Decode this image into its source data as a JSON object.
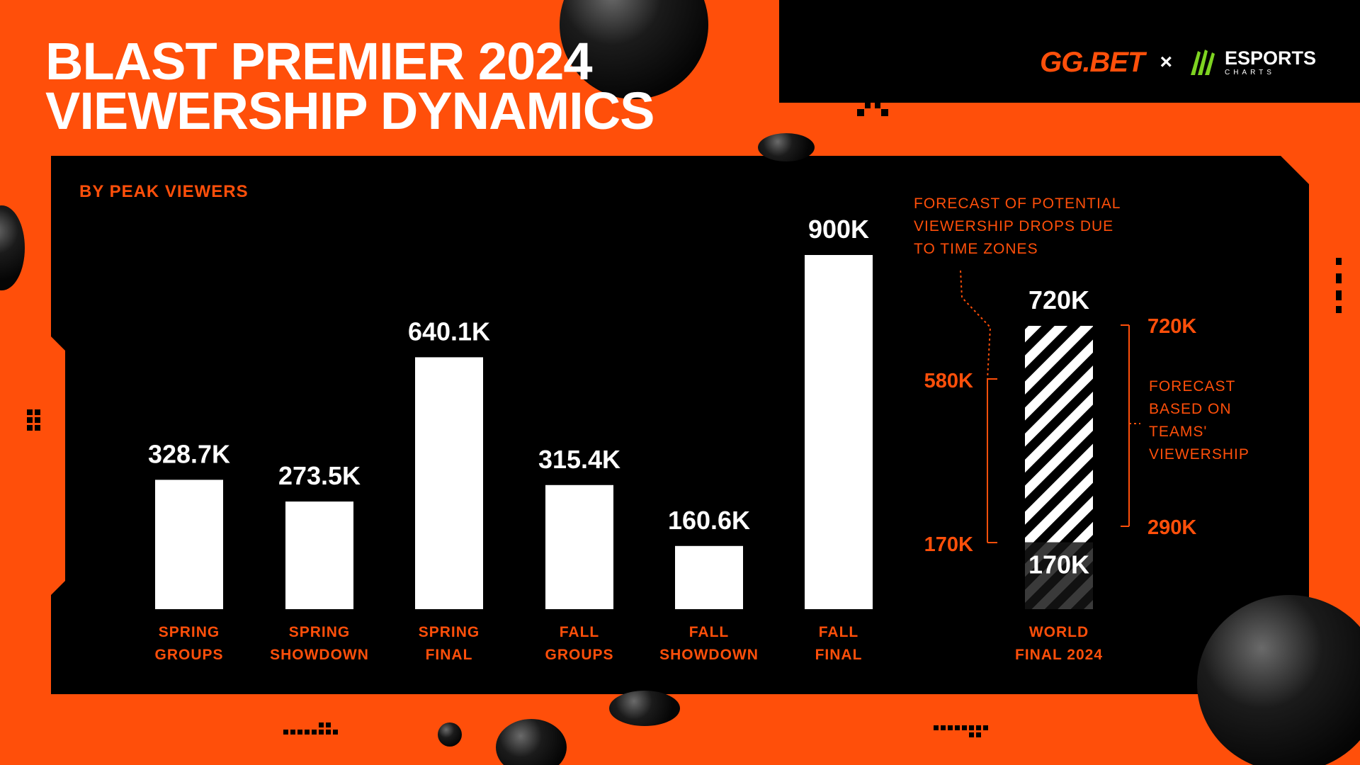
{
  "header": {
    "title_line1": "BLAST PREMIER 2024",
    "title_line2": "VIEWERSHIP DYNAMICS",
    "logo_ggbet": "GG.BET",
    "logo_separator": "×",
    "logo_esports": "ESPORTS",
    "logo_charts": "CHARTS"
  },
  "chart_data": {
    "type": "bar",
    "subtitle": "BY PEAK VIEWERS",
    "categories": [
      [
        "SPRING",
        "GROUPS"
      ],
      [
        "SPRING",
        "SHOWDOWN"
      ],
      [
        "SPRING",
        "FINAL"
      ],
      [
        "FALL",
        "GROUPS"
      ],
      [
        "FALL",
        "SHOWDOWN"
      ],
      [
        "FALL",
        "FINAL"
      ],
      [
        "WORLD",
        "FINAL 2024"
      ]
    ],
    "values": [
      328.7,
      273.5,
      640.1,
      315.4,
      160.6,
      900,
      720
    ],
    "value_labels": [
      "328.7K",
      "273.5K",
      "640.1K",
      "315.4K",
      "160.6K",
      "900K",
      "720K"
    ],
    "unit": "K",
    "forecast": {
      "category_index": 6,
      "base_value": 170,
      "base_label": "170K",
      "top_value": 720,
      "top_label": "720K",
      "time_zone_note": [
        "FORECAST OF POTENTIAL",
        "VIEWERSHIP DROPS DUE",
        "TO TIME ZONES"
      ],
      "time_zone_range_labels": [
        "580K",
        "170K"
      ],
      "teams_note": [
        "FORECAST",
        "BASED ON",
        "TEAMS'",
        "VIEWERSHIP"
      ],
      "teams_range_labels": [
        "720K",
        "290K"
      ]
    },
    "colors": {
      "accent": "#ff4f0a",
      "bar": "#ffffff",
      "panel": "#000000"
    }
  }
}
